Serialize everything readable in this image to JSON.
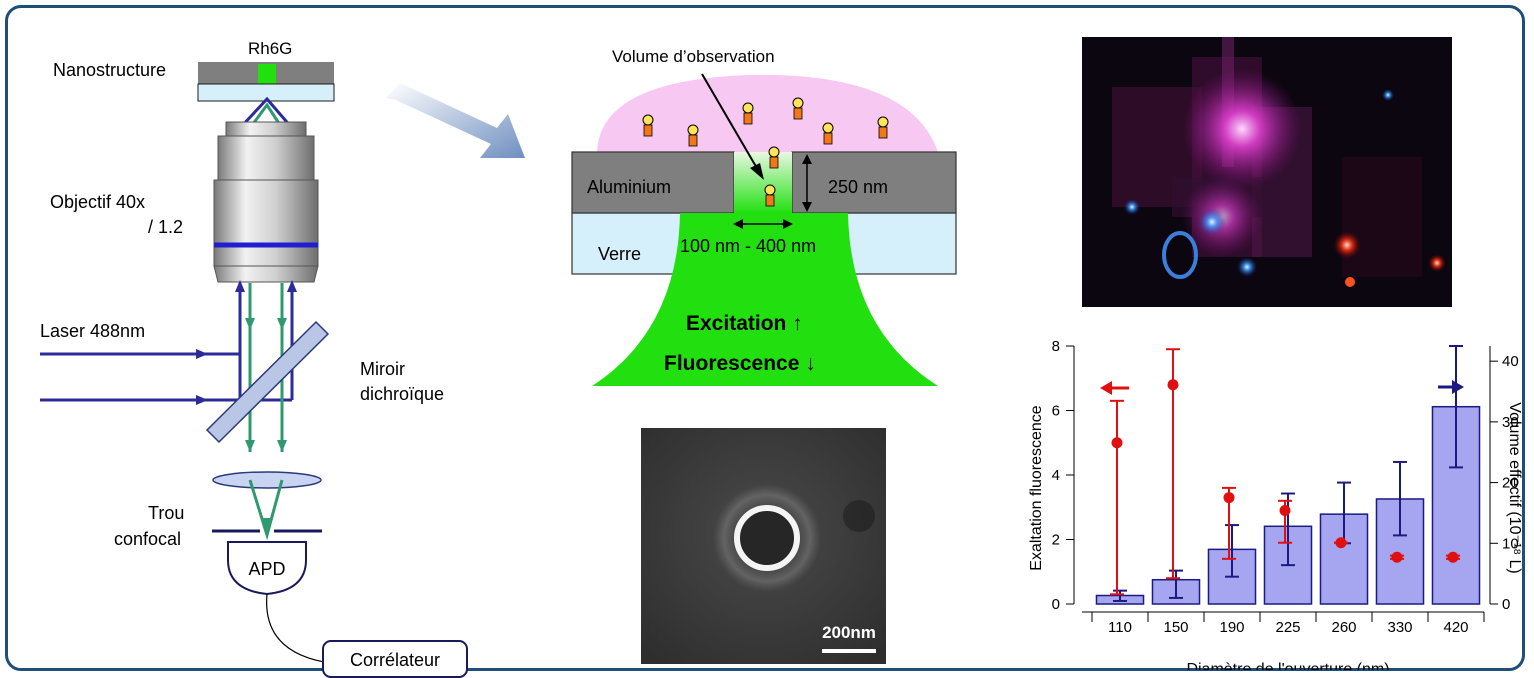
{
  "setup": {
    "rh6g": "Rh6G",
    "nanostructure": "Nanostructure",
    "objective_line1": "Objectif 40x",
    "objective_line2": "/ 1.2",
    "laser": "Laser 488nm",
    "mirror_line1": "Miroir",
    "mirror_line2": "dichroïque",
    "pinhole_line1": "Trou",
    "pinhole_line2": "confocal",
    "apd": "APD",
    "correlator": "Corrélateur"
  },
  "nano_detail": {
    "volume_label": "Volume d’observation",
    "metal": "Aluminium",
    "thickness": "250 nm",
    "glass": "Verre",
    "diameter": "100 nm - 400 nm",
    "excitation": "Excitation ↑",
    "fluorescence": "Fluorescence ↓"
  },
  "sem_image": {
    "scale_label": "200nm"
  },
  "chart_data": {
    "type": "bar",
    "xlabel": "Diamètre de l'ouverture (nm)",
    "ylabel_left": "Exaltation fluorescence",
    "ylabel_right": "Volume effectif (10⁻¹⁸ L)",
    "categories": [
      "110",
      "150",
      "190",
      "225",
      "260",
      "330",
      "420"
    ],
    "ylim_left": [
      0,
      8
    ],
    "ylim_right": [
      0,
      42.5
    ],
    "yticks_left": [
      0,
      2,
      4,
      6,
      8
    ],
    "yticks_right": [
      0,
      10,
      20,
      30,
      40
    ],
    "series": [
      {
        "axis": "right",
        "values": [
          1.4,
          4,
          9,
          12.8,
          14.8,
          17.3,
          32.5
        ],
        "err_low": [
          0.5,
          1,
          4.5,
          6.4,
          10,
          11.3,
          22.5
        ],
        "err_high": [
          2.2,
          5.5,
          13,
          18.2,
          20,
          23.4,
          42.5
        ],
        "color": "#1a1a80",
        "fill": "#a6a6f0"
      },
      {
        "axis": "left",
        "values": [
          5.0,
          6.8,
          3.3,
          2.9,
          1.9,
          1.45,
          1.45
        ],
        "err_low": [
          0.3,
          0.8,
          1.4,
          1.9,
          1.9,
          1.4,
          1.4
        ],
        "err_high": [
          6.3,
          7.9,
          3.6,
          3.2,
          1.9,
          1.5,
          1.5
        ],
        "color": "#e01010"
      }
    ]
  },
  "colors": {
    "frame": "#1f4e79",
    "green": "#22e010",
    "beam_blue": "#2b2b9a",
    "beam_green": "#2f9a70",
    "glass": "#d6f0fb",
    "metal": "#7f7f7f",
    "solution": "#f6c8f2"
  }
}
